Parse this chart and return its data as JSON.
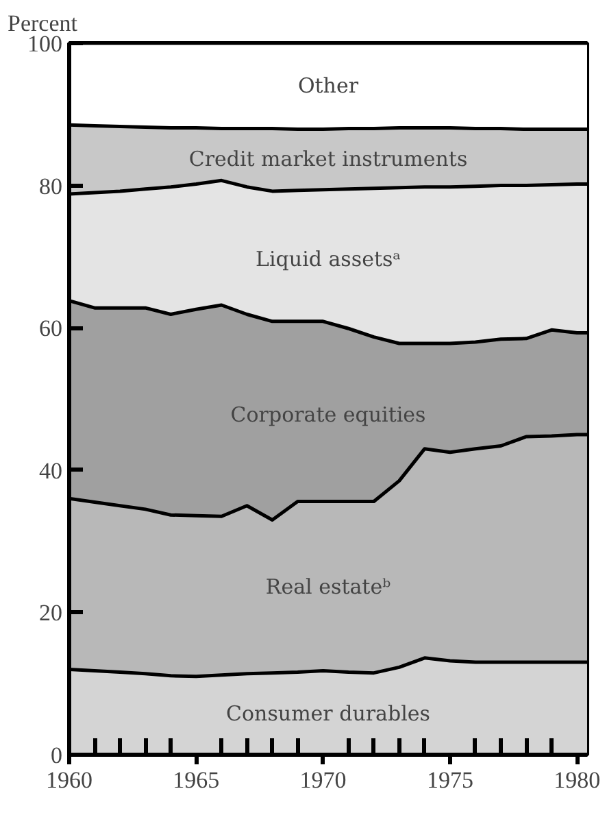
{
  "chart_data": {
    "type": "area",
    "stacked": true,
    "ylabel": "Percent",
    "x": [
      1960,
      1961,
      1962,
      1963,
      1964,
      1965,
      1966,
      1967,
      1968,
      1969,
      1970,
      1971,
      1972,
      1973,
      1974,
      1975,
      1976,
      1977,
      1978,
      1979,
      1980,
      1980.4
    ],
    "xlim": [
      1960,
      1980.4
    ],
    "xticks": [
      1960,
      {
        "value": 1961,
        "label": null
      },
      {
        "value": 1962,
        "label": null
      },
      {
        "value": 1963,
        "label": null
      },
      {
        "value": 1964,
        "label": null
      },
      1965,
      {
        "value": 1966,
        "label": null
      },
      {
        "value": 1967,
        "label": null
      },
      {
        "value": 1968,
        "label": null
      },
      {
        "value": 1969,
        "label": null
      },
      1970,
      {
        "value": 1971,
        "label": null
      },
      {
        "value": 1972,
        "label": null
      },
      {
        "value": 1973,
        "label": null
      },
      {
        "value": 1974,
        "label": null
      },
      1975,
      {
        "value": 1976,
        "label": null
      },
      {
        "value": 1977,
        "label": null
      },
      {
        "value": 1978,
        "label": null
      },
      {
        "value": 1979,
        "label": null
      },
      1980
    ],
    "ylim": [
      0,
      100
    ],
    "yticks": [
      0,
      20,
      40,
      60,
      80,
      100
    ],
    "series": [
      {
        "name": "Consumer durables",
        "color": "#d4d4d4",
        "values": [
          12,
          11.8,
          11.6,
          11.4,
          11.1,
          11,
          11.2,
          11.4,
          11.5,
          11.6,
          11.8,
          11.6,
          11.5,
          12.3,
          13.6,
          13.2,
          13,
          13,
          13,
          13,
          13,
          13
        ]
      },
      {
        "name": "Real estateᵇ",
        "color": "#b8b8b8",
        "values": [
          24,
          23.7,
          23.4,
          23.1,
          22.6,
          22.6,
          22.3,
          23.6,
          21.5,
          24,
          23.8,
          24,
          24.1,
          26.2,
          29.4,
          29.3,
          30,
          30.4,
          31.7,
          31.8,
          32,
          32
        ]
      },
      {
        "name": "Corporate equities",
        "color": "#a0a0a0",
        "values": [
          27.8,
          27.3,
          27.8,
          28.3,
          28.2,
          29,
          29.7,
          26.9,
          27.9,
          25.3,
          25.3,
          24.3,
          23.1,
          19.3,
          14.8,
          15.3,
          15,
          15,
          13.8,
          14.9,
          14.3,
          14.3
        ]
      },
      {
        "name": "Liquid assetsᵃ",
        "color": "#e4e4e4",
        "values": [
          15,
          16.2,
          16.4,
          16.7,
          17.9,
          17.6,
          17.5,
          17.9,
          18.3,
          18.4,
          18.5,
          19.6,
          20.9,
          21.9,
          22,
          22,
          21.9,
          21.6,
          21.5,
          20.4,
          20.9,
          20.9
        ]
      },
      {
        "name": "Credit market instruments",
        "color": "#c8c8c8",
        "values": [
          9.7,
          9.4,
          9.1,
          8.7,
          8.3,
          7.9,
          7.3,
          8.2,
          8.8,
          8.6,
          8.5,
          8.5,
          8.4,
          8.4,
          8.3,
          8.3,
          8.1,
          8,
          7.9,
          7.8,
          7.7,
          7.7
        ]
      },
      {
        "name": "Other",
        "color": "#ffffff",
        "values": [
          11.5,
          11.6,
          11.7,
          11.8,
          11.9,
          11.9,
          12,
          12,
          12,
          12.1,
          12.1,
          12,
          12,
          11.9,
          11.9,
          11.9,
          12,
          12,
          12.1,
          12.1,
          12.1,
          12.1
        ]
      }
    ]
  }
}
